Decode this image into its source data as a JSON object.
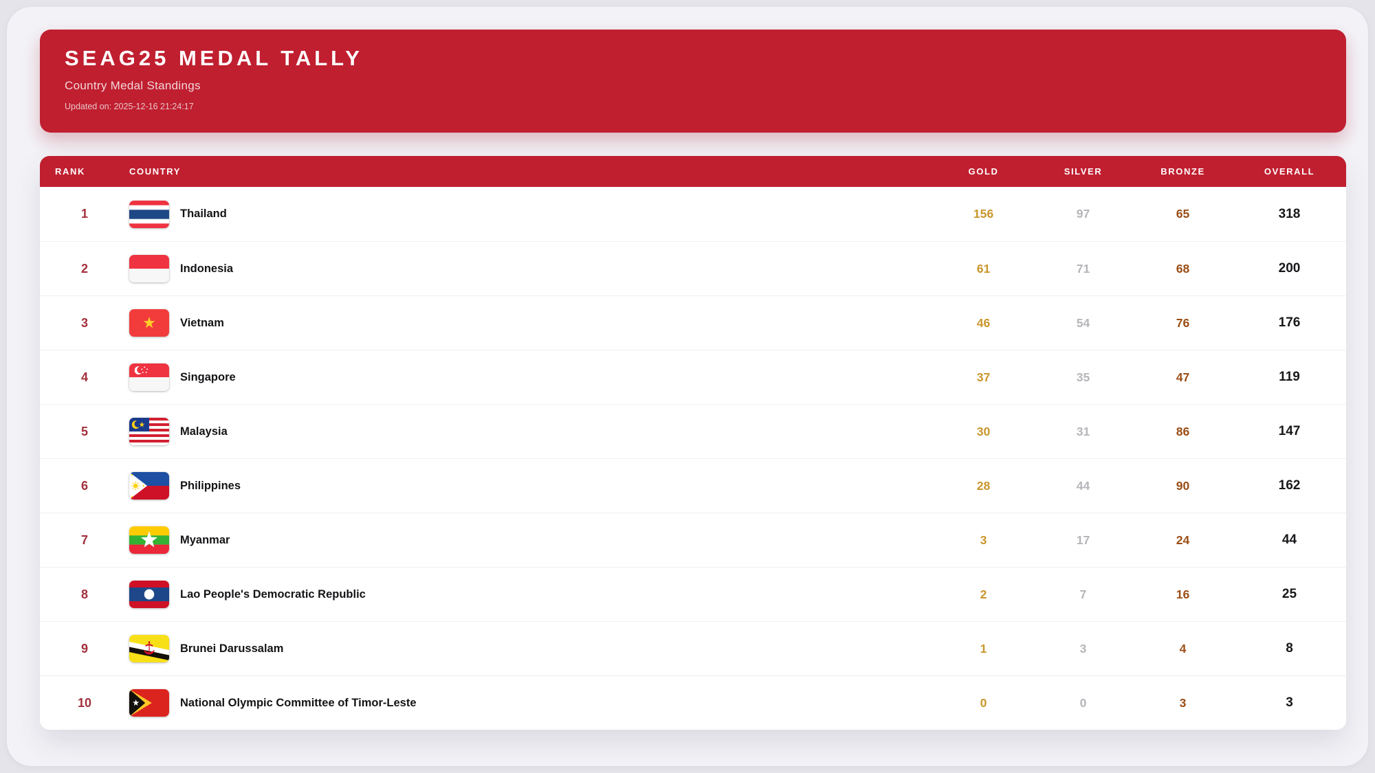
{
  "header": {
    "title": "SEAG25 MEDAL TALLY",
    "subtitle": "Country Medal Standings",
    "updated": "Updated on: 2025-12-16 21:24:17"
  },
  "table": {
    "columns": [
      {
        "key": "rank",
        "label": "RANK"
      },
      {
        "key": "country",
        "label": "COUNTRY"
      },
      {
        "key": "gold",
        "label": "GOLD"
      },
      {
        "key": "silver",
        "label": "SILVER"
      },
      {
        "key": "bronze",
        "label": "BRONZE"
      },
      {
        "key": "overall",
        "label": "OVERALL"
      }
    ],
    "rows": [
      {
        "rank": "1",
        "flag": "thailand",
        "country": "Thailand",
        "gold": "156",
        "silver": "97",
        "bronze": "65",
        "overall": "318"
      },
      {
        "rank": "2",
        "flag": "indonesia",
        "country": "Indonesia",
        "gold": "61",
        "silver": "71",
        "bronze": "68",
        "overall": "200"
      },
      {
        "rank": "3",
        "flag": "vietnam",
        "country": "Vietnam",
        "gold": "46",
        "silver": "54",
        "bronze": "76",
        "overall": "176"
      },
      {
        "rank": "4",
        "flag": "singapore",
        "country": "Singapore",
        "gold": "37",
        "silver": "35",
        "bronze": "47",
        "overall": "119"
      },
      {
        "rank": "5",
        "flag": "malaysia",
        "country": "Malaysia",
        "gold": "30",
        "silver": "31",
        "bronze": "86",
        "overall": "147"
      },
      {
        "rank": "6",
        "flag": "philippines",
        "country": "Philippines",
        "gold": "28",
        "silver": "44",
        "bronze": "90",
        "overall": "162"
      },
      {
        "rank": "7",
        "flag": "myanmar",
        "country": "Myanmar",
        "gold": "3",
        "silver": "17",
        "bronze": "24",
        "overall": "44"
      },
      {
        "rank": "8",
        "flag": "laos",
        "country": "Lao People's Democratic Republic",
        "gold": "2",
        "silver": "7",
        "bronze": "16",
        "overall": "25"
      },
      {
        "rank": "9",
        "flag": "brunei",
        "country": "Brunei Darussalam",
        "gold": "1",
        "silver": "3",
        "bronze": "4",
        "overall": "8"
      },
      {
        "rank": "10",
        "flag": "timor-leste",
        "country": "National Olympic Committee of Timor-Leste",
        "gold": "0",
        "silver": "0",
        "bronze": "3",
        "overall": "3"
      }
    ]
  },
  "colors": {
    "accent_red": "#c01f30",
    "gold": "#c9962b",
    "silver": "#b5b5ba",
    "bronze": "#9a4d15",
    "overall": "#18181b",
    "rank": "#a3303c"
  }
}
